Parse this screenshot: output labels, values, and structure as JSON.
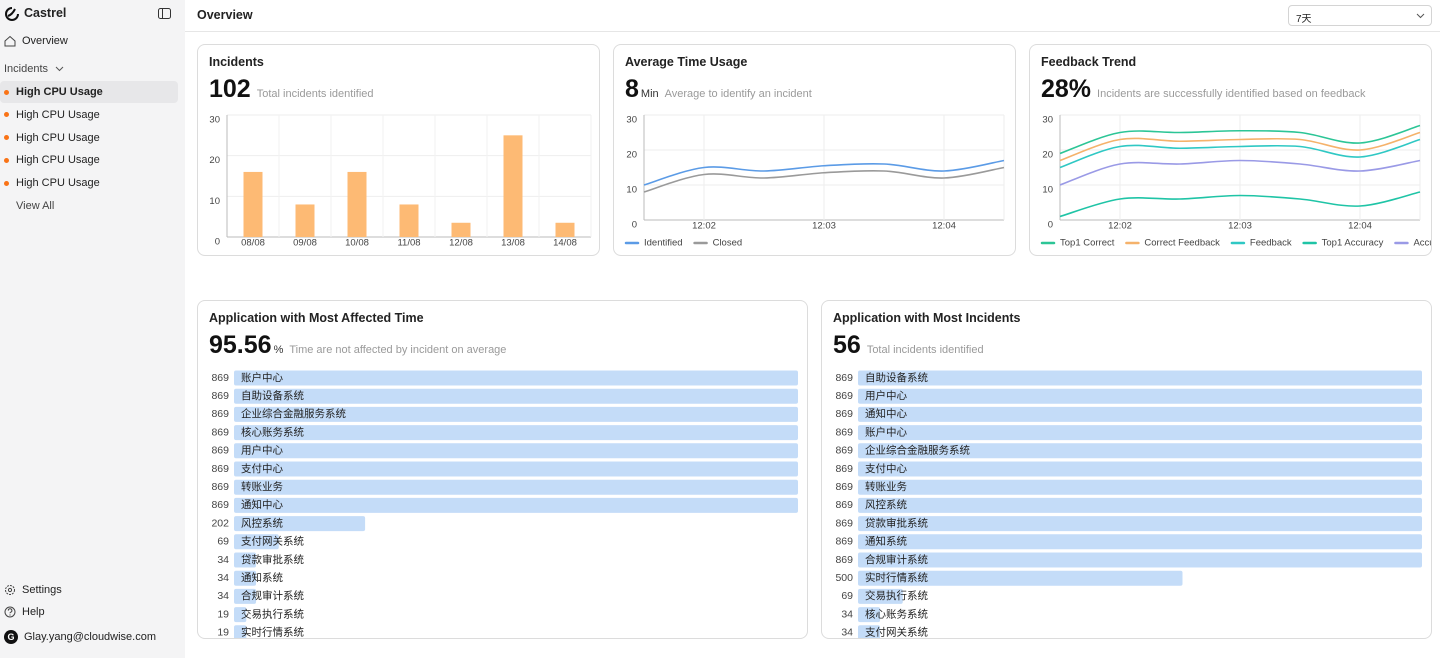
{
  "sidebar": {
    "brand": "Castrel",
    "overview": "Overview",
    "incidents": "Incidents",
    "incident_items": [
      "High CPU Usage",
      "High CPU Usage",
      "High CPU Usage",
      "High CPU Usage",
      "High CPU Usage"
    ],
    "view_all": "View All",
    "settings": "Settings",
    "help": "Help",
    "user_initial": "G",
    "user": "Glay.yang@cloudwise.com"
  },
  "header": {
    "title": "Overview",
    "range": "7天"
  },
  "cards": [
    {
      "title": "Incidents",
      "stat": 102,
      "stat_caption": "Total incidents identified",
      "chart": {
        "type": "bar",
        "categories": [
          "08/08",
          "09/08",
          "10/08",
          "11/08",
          "12/08",
          "13/08",
          "14/08"
        ],
        "values": [
          16,
          8,
          16,
          8,
          3.5,
          25,
          3.5
        ],
        "color": "#fdba74",
        "ylim": [
          0,
          30
        ],
        "yticks": [
          0,
          10,
          20,
          30
        ],
        "grid": true
      }
    },
    {
      "title": "Average Time Usage",
      "stat": 8,
      "stat_unit": "Min",
      "stat_caption": "Average to identify an incident",
      "chart": {
        "type": "line",
        "categories": [
          null,
          "12:02",
          null,
          "12:03",
          null,
          "12:04",
          null
        ],
        "series": [
          {
            "name": "Identified",
            "color": "#5b9be6",
            "values": [
              10,
              15,
              14,
              15.5,
              16,
              14,
              17
            ]
          },
          {
            "name": "Closed",
            "color": "#9a9a9a",
            "values": [
              8,
              13,
              12,
              13.5,
              14,
              12,
              15
            ]
          }
        ],
        "ylim": [
          0,
          30
        ],
        "yticks": [
          0,
          10,
          20,
          30
        ],
        "grid": true
      }
    },
    {
      "title": "Feedback Trend",
      "stat": "28%",
      "stat_caption": "Incidents are successfully identified based on feedback",
      "chart": {
        "type": "line",
        "categories": [
          null,
          "12:02",
          null,
          "12:03",
          null,
          "12:04",
          null
        ],
        "series": [
          {
            "name": "Top1 Correct",
            "color": "#2cc596",
            "values": [
              19,
              25,
              25,
              25.5,
              25,
              22,
              27
            ]
          },
          {
            "name": "Correct Feedback",
            "color": "#f5b26b",
            "values": [
              17,
              23,
              22.5,
              23,
              23,
              20,
              25
            ]
          },
          {
            "name": "Feedback",
            "color": "#2fc8c4",
            "values": [
              15,
              21,
              20.5,
              21,
              21,
              18,
              23
            ]
          },
          {
            "name": "Top1 Accuracy",
            "color": "#1fc4a6",
            "values": [
              1,
              6,
              6,
              7,
              6,
              4,
              8
            ]
          },
          {
            "name": "Accuracy",
            "color": "#9a9ae6",
            "values": [
              10,
              16,
              16,
              17,
              16,
              14,
              17
            ]
          }
        ],
        "ylim": [
          0,
          30
        ],
        "yticks": [
          0,
          10,
          20,
          30
        ],
        "grid": true
      }
    },
    {
      "title": "Application with Most Affected Time",
      "stat": 95.56,
      "stat_unit": "%",
      "stat_caption": "Time are not affected by incident on average",
      "chart": {
        "type": "hbar",
        "color": "#c4dcf8",
        "categories": [
          "账户中心",
          "自助设备系统",
          "企业综合金融服务系统",
          "核心账务系统",
          "用户中心",
          "支付中心",
          "转账业务",
          "通知中心",
          "风控系统",
          "支付网关系统",
          "贷款审批系统",
          "通知系统",
          "合规审计系统",
          "交易执行系统",
          "实时行情系统"
        ],
        "values": [
          869,
          869,
          869,
          869,
          869,
          869,
          869,
          869,
          202,
          69,
          34,
          34,
          34,
          19,
          19
        ]
      }
    },
    {
      "title": "Application with Most Incidents",
      "stat": 56,
      "stat_caption": "Total incidents identified",
      "chart": {
        "type": "hbar",
        "color": "#c4dcf8",
        "categories": [
          "自助设备系统",
          "用户中心",
          "通知中心",
          "账户中心",
          "企业综合金融服务系统",
          "支付中心",
          "转账业务",
          "风控系统",
          "贷款审批系统",
          "通知系统",
          "合规审计系统",
          "实时行情系统",
          "交易执行系统",
          "核心账务系统",
          "支付网关系统"
        ],
        "values": [
          869,
          869,
          869,
          869,
          869,
          869,
          869,
          869,
          869,
          869,
          869,
          500,
          69,
          34,
          34
        ]
      }
    }
  ]
}
